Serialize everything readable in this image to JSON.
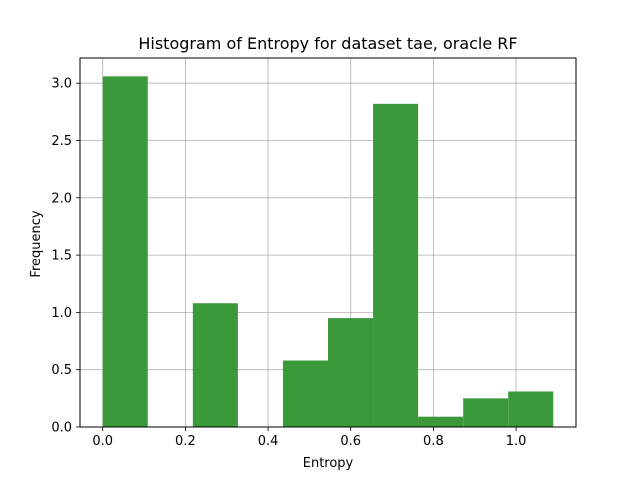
{
  "chart_data": {
    "type": "bar",
    "title": "Histogram of Entropy for dataset tae, oracle RF",
    "xlabel": "Entropy",
    "ylabel": "Frequency",
    "xlim": [
      -0.055,
      1.145
    ],
    "ylim": [
      0,
      3.22
    ],
    "xticks": [
      0.0,
      0.2,
      0.4,
      0.6,
      0.8,
      1.0
    ],
    "xtick_labels": [
      "0.0",
      "0.2",
      "0.4",
      "0.6",
      "0.8",
      "1.0"
    ],
    "yticks": [
      0.0,
      0.5,
      1.0,
      1.5,
      2.0,
      2.5,
      3.0
    ],
    "ytick_labels": [
      "0.0",
      "0.5",
      "1.0",
      "1.5",
      "2.0",
      "2.5",
      "3.0"
    ],
    "grid": true,
    "bar_color": "#3a9a3a",
    "bins": [
      {
        "x0": 0.0,
        "x1": 0.109,
        "value": 3.06
      },
      {
        "x0": 0.109,
        "x1": 0.218,
        "value": 0.0
      },
      {
        "x0": 0.218,
        "x1": 0.327,
        "value": 1.08
      },
      {
        "x0": 0.327,
        "x1": 0.436,
        "value": 0.0
      },
      {
        "x0": 0.436,
        "x1": 0.545,
        "value": 0.58
      },
      {
        "x0": 0.545,
        "x1": 0.654,
        "value": 0.95
      },
      {
        "x0": 0.654,
        "x1": 0.763,
        "value": 2.82
      },
      {
        "x0": 0.763,
        "x1": 0.872,
        "value": 0.09
      },
      {
        "x0": 0.872,
        "x1": 0.981,
        "value": 0.25
      },
      {
        "x0": 0.981,
        "x1": 1.09,
        "value": 0.31
      }
    ]
  }
}
